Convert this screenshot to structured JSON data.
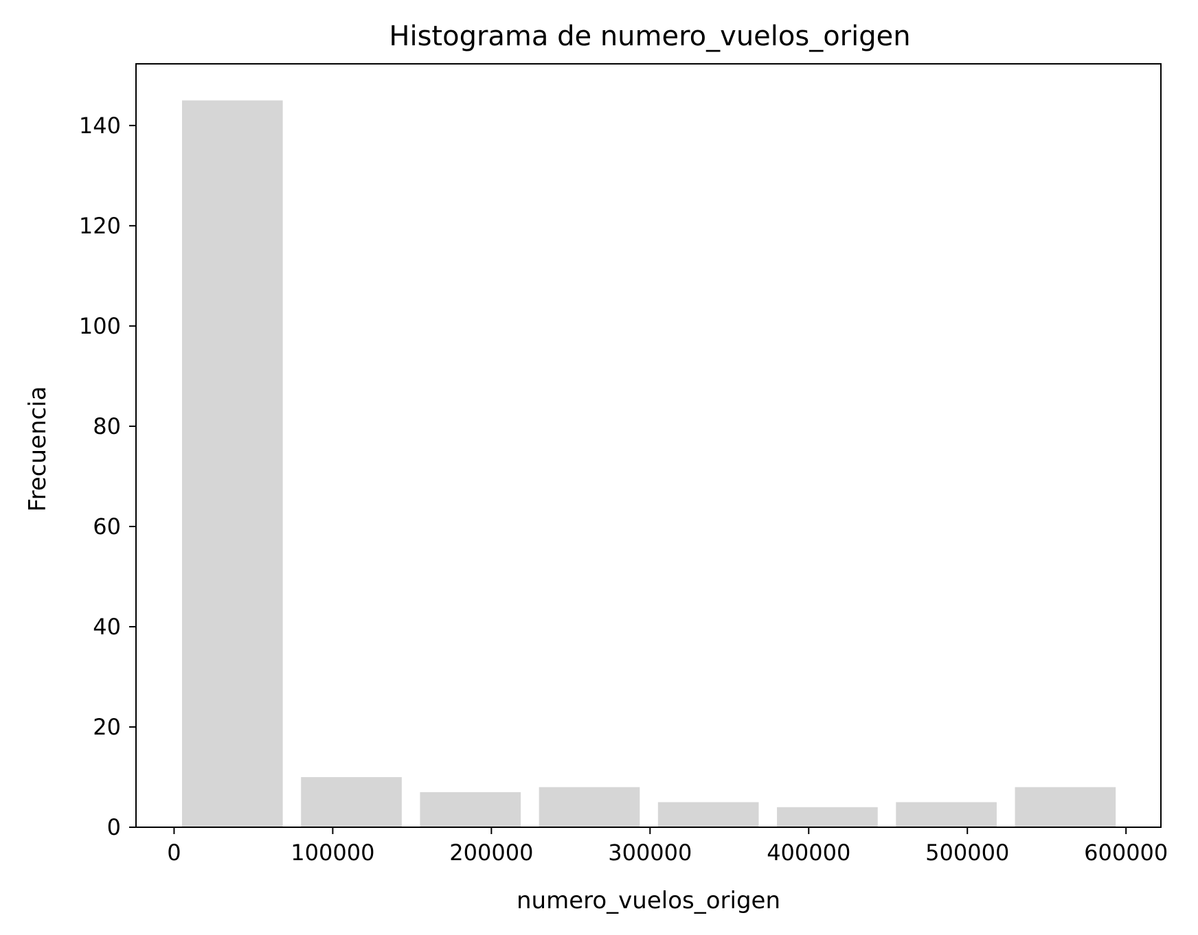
{
  "chart_data": {
    "type": "bar",
    "title": "Histograma de numero_vuelos_origen",
    "xlabel": "numero_vuelos_origen",
    "ylabel": "Frecuencia",
    "xlim": [
      -24000,
      622000
    ],
    "ylim": [
      0,
      152.3
    ],
    "xticks": [
      0,
      100000,
      200000,
      300000,
      400000,
      500000,
      600000
    ],
    "xtick_labels": [
      "0",
      "100000",
      "200000",
      "300000",
      "400000",
      "500000",
      "600000"
    ],
    "yticks": [
      0,
      20,
      40,
      60,
      80,
      100,
      120,
      140
    ],
    "ytick_labels": [
      "0",
      "20",
      "40",
      "60",
      "80",
      "100",
      "120",
      "140"
    ],
    "bar_color": "#d6d6d6",
    "bins": [
      {
        "x0": 5000,
        "x1": 68500,
        "count": 145
      },
      {
        "x0": 80000,
        "x1": 143500,
        "count": 10
      },
      {
        "x0": 155000,
        "x1": 218500,
        "count": 7
      },
      {
        "x0": 230000,
        "x1": 293500,
        "count": 8
      },
      {
        "x0": 305000,
        "x1": 368500,
        "count": 5
      },
      {
        "x0": 380000,
        "x1": 443500,
        "count": 4
      },
      {
        "x0": 455000,
        "x1": 518500,
        "count": 5
      },
      {
        "x0": 530000,
        "x1": 593500,
        "count": 8
      }
    ],
    "grid": false,
    "legend": "none"
  }
}
